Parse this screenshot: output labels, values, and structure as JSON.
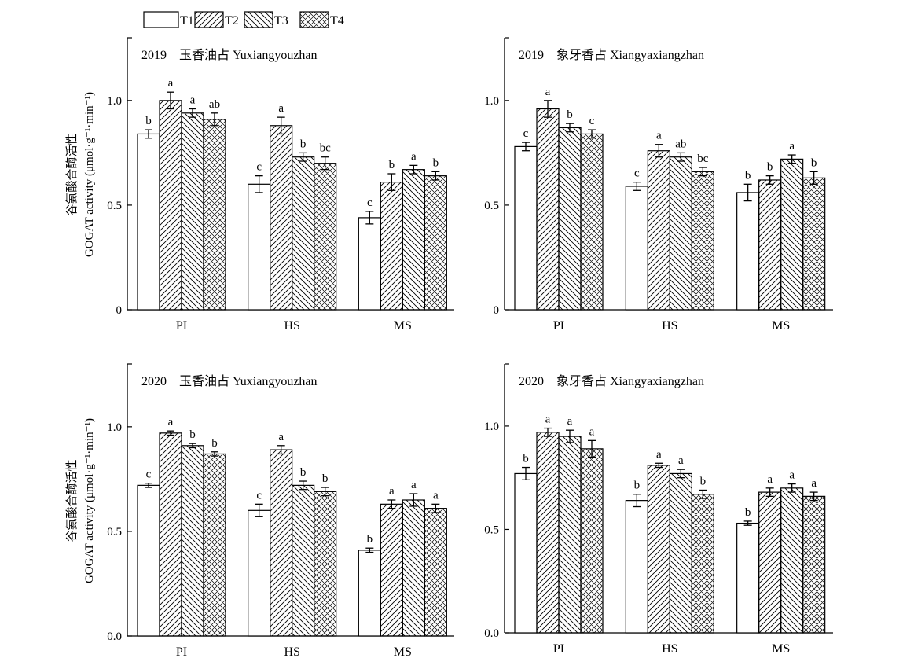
{
  "legend": {
    "items": [
      {
        "label": "T1",
        "pattern": "blank"
      },
      {
        "label": "T2",
        "pattern": "hatch-forward"
      },
      {
        "label": "T3",
        "pattern": "hatch-back"
      },
      {
        "label": "T4",
        "pattern": "crosshatch"
      }
    ]
  },
  "ylabel_cn": "谷氨酸合酶活性",
  "ylabel_en": "GOGAT activity (μmol·g⁻¹·min⁻¹)",
  "chart_data": [
    {
      "type": "bar",
      "panel_title": "2019    玉香油占 Yuxiangyouzhan",
      "categories": [
        "PI",
        "HS",
        "MS"
      ],
      "ylim": [
        0,
        1.3
      ],
      "yticks": [
        0,
        0.5,
        1.0
      ],
      "ytick_labels": [
        "0",
        "0.5",
        "1.0"
      ],
      "series": [
        {
          "name": "T1",
          "values": [
            0.84,
            0.6,
            0.44
          ],
          "errors": [
            0.02,
            0.04,
            0.03
          ],
          "letters": [
            "b",
            "c",
            "c"
          ]
        },
        {
          "name": "T2",
          "values": [
            1.0,
            0.88,
            0.61
          ],
          "errors": [
            0.04,
            0.04,
            0.04
          ],
          "letters": [
            "a",
            "a",
            "b"
          ]
        },
        {
          "name": "T3",
          "values": [
            0.94,
            0.73,
            0.67
          ],
          "errors": [
            0.02,
            0.02,
            0.02
          ],
          "letters": [
            "a",
            "b",
            "a"
          ]
        },
        {
          "name": "T4",
          "values": [
            0.91,
            0.7,
            0.64
          ],
          "errors": [
            0.03,
            0.03,
            0.02
          ],
          "letters": [
            "ab",
            "bc",
            "b"
          ]
        }
      ]
    },
    {
      "type": "bar",
      "panel_title": "2019    象牙香占 Xiangyaxiangzhan",
      "categories": [
        "PI",
        "HS",
        "MS"
      ],
      "ylim": [
        0,
        1.3
      ],
      "yticks": [
        0,
        0.5,
        1.0
      ],
      "ytick_labels": [
        "0",
        "0.5",
        "1.0"
      ],
      "series": [
        {
          "name": "T1",
          "values": [
            0.78,
            0.59,
            0.56
          ],
          "errors": [
            0.02,
            0.02,
            0.04
          ],
          "letters": [
            "c",
            "c",
            "b"
          ]
        },
        {
          "name": "T2",
          "values": [
            0.96,
            0.76,
            0.62
          ],
          "errors": [
            0.04,
            0.03,
            0.02
          ],
          "letters": [
            "a",
            "a",
            "b"
          ]
        },
        {
          "name": "T3",
          "values": [
            0.87,
            0.73,
            0.72
          ],
          "errors": [
            0.02,
            0.02,
            0.02
          ],
          "letters": [
            "b",
            "ab",
            "a"
          ]
        },
        {
          "name": "T4",
          "values": [
            0.84,
            0.66,
            0.63
          ],
          "errors": [
            0.02,
            0.02,
            0.03
          ],
          "letters": [
            "c",
            "bc",
            "b"
          ]
        }
      ]
    },
    {
      "type": "bar",
      "panel_title": "2020    玉香油占 Yuxiangyouzhan",
      "categories": [
        "PI",
        "HS",
        "MS"
      ],
      "ylim": [
        0,
        1.3
      ],
      "yticks": [
        0,
        0.5,
        1.0
      ],
      "ytick_labels": [
        "0.0",
        "0.5",
        "1.0"
      ],
      "series": [
        {
          "name": "T1",
          "values": [
            0.72,
            0.6,
            0.41
          ],
          "errors": [
            0.01,
            0.03,
            0.01
          ],
          "letters": [
            "c",
            "c",
            "b"
          ]
        },
        {
          "name": "T2",
          "values": [
            0.97,
            0.89,
            0.63
          ],
          "errors": [
            0.01,
            0.02,
            0.02
          ],
          "letters": [
            "a",
            "a",
            "a"
          ]
        },
        {
          "name": "T3",
          "values": [
            0.91,
            0.72,
            0.65
          ],
          "errors": [
            0.01,
            0.02,
            0.03
          ],
          "letters": [
            "b",
            "b",
            "a"
          ]
        },
        {
          "name": "T4",
          "values": [
            0.87,
            0.69,
            0.61
          ],
          "errors": [
            0.01,
            0.02,
            0.02
          ],
          "letters": [
            "b",
            "b",
            "a"
          ]
        }
      ]
    },
    {
      "type": "bar",
      "panel_title": "2020    象牙香占 Xiangyaxiangzhan",
      "categories": [
        "PI",
        "HS",
        "MS"
      ],
      "ylim": [
        0,
        1.3
      ],
      "yticks": [
        0,
        0.5,
        1.0
      ],
      "ytick_labels": [
        "0.0",
        "0.5",
        "1.0"
      ],
      "series": [
        {
          "name": "T1",
          "values": [
            0.77,
            0.64,
            0.53
          ],
          "errors": [
            0.03,
            0.03,
            0.01
          ],
          "letters": [
            "b",
            "b",
            "b"
          ]
        },
        {
          "name": "T2",
          "values": [
            0.97,
            0.81,
            0.68
          ],
          "errors": [
            0.02,
            0.01,
            0.02
          ],
          "letters": [
            "a",
            "a",
            "a"
          ]
        },
        {
          "name": "T3",
          "values": [
            0.95,
            0.77,
            0.7
          ],
          "errors": [
            0.03,
            0.02,
            0.02
          ],
          "letters": [
            "a",
            "a",
            "a"
          ]
        },
        {
          "name": "T4",
          "values": [
            0.89,
            0.67,
            0.66
          ],
          "errors": [
            0.04,
            0.02,
            0.02
          ],
          "letters": [
            "a",
            "b",
            "a"
          ]
        }
      ]
    }
  ]
}
